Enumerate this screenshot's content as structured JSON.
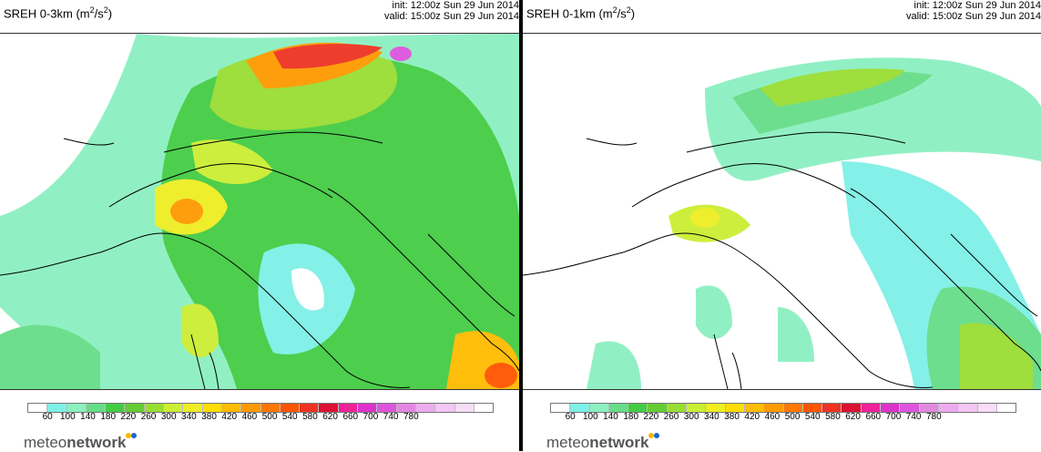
{
  "panels": [
    {
      "title_prefix": "SREH 0-3km (m",
      "title_sup1": "2",
      "title_mid": "/s",
      "title_sup2": "2",
      "title_suffix": ")",
      "init": "init: 12:00z Sun 29 Jun 2014",
      "valid": "valid: 15:00z Sun 29 Jun 2014"
    },
    {
      "title_prefix": "SREH 0-1km (m",
      "title_sup1": "2",
      "title_mid": "/s",
      "title_sup2": "2",
      "title_suffix": ")",
      "init": "init: 12:00z Sun 29 Jun 2014",
      "valid": "valid: 15:00z Sun 29 Jun 2014"
    }
  ],
  "colorbar": {
    "colors": [
      "#ffffff",
      "#7ff0e6",
      "#8cf0c0",
      "#66dd88",
      "#44cc44",
      "#66cc33",
      "#99dd33",
      "#ccee33",
      "#eeee22",
      "#ffdd00",
      "#ffbb00",
      "#ff9900",
      "#ff7700",
      "#ff5500",
      "#ee3322",
      "#dd1133",
      "#ee2299",
      "#dd33cc",
      "#dd55dd",
      "#e288e0",
      "#eeaaee",
      "#f3c6f3",
      "#f7ddf7",
      "#ffffff"
    ],
    "labels": [
      "60",
      "100",
      "140",
      "180",
      "220",
      "260",
      "300",
      "340",
      "380",
      "420",
      "460",
      "500",
      "540",
      "580",
      "620",
      "660",
      "700",
      "740",
      "780"
    ]
  },
  "brand": {
    "text_light": "meteo",
    "text_bold": "network",
    "dot1": "#f5b800",
    "dot2": "#1a66cc"
  }
}
